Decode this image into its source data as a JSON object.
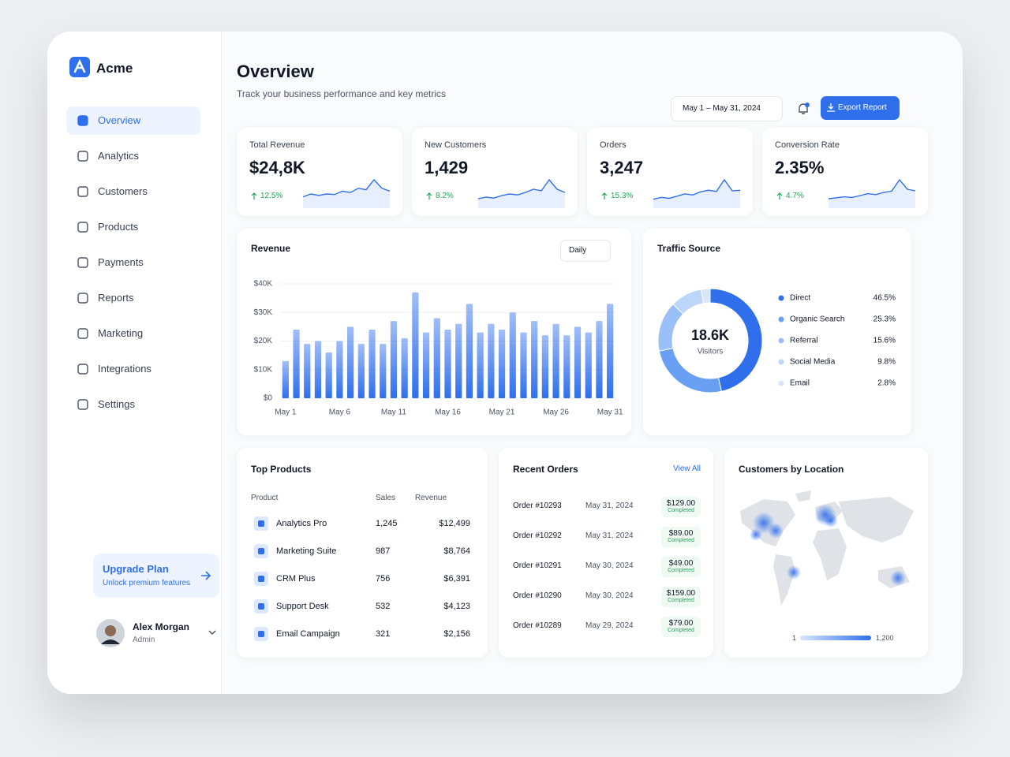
{
  "brand": "Acme",
  "nav": [
    "Overview",
    "Analytics",
    "Customers",
    "Products",
    "Payments",
    "Reports",
    "Marketing",
    "Integrations",
    "Settings"
  ],
  "upgrade": {
    "title": "Upgrade Plan",
    "subtitle": "Unlock premium features"
  },
  "user": {
    "name": "Alex Morgan",
    "role": "Admin"
  },
  "header": {
    "title": "Overview",
    "subtitle": "Track your business performance and key metrics",
    "date_range": "May 1 – May 31, 2024",
    "export": "Export Report"
  },
  "kpis": [
    {
      "label": "Total Revenue",
      "value": "$24,8K",
      "change": "12.5%",
      "trend": [
        4,
        5,
        4.5,
        5,
        4.8,
        6,
        5.5,
        7,
        6.5,
        10,
        7,
        6
      ]
    },
    {
      "label": "New Customers",
      "value": "1,429",
      "change": "8.2%",
      "trend": [
        3,
        3.5,
        3.2,
        4,
        4.5,
        4.2,
        5,
        6,
        5.5,
        9,
        6,
        5
      ]
    },
    {
      "label": "Orders",
      "value": "3,247",
      "change": "15.3%",
      "trend": [
        3,
        3.6,
        3.3,
        4,
        4.8,
        4.4,
        5.5,
        6,
        5.6,
        9.5,
        5.8,
        6
      ]
    },
    {
      "label": "Conversion Rate",
      "value": "2.35%",
      "change": "4.7%",
      "trend": [
        3,
        3.3,
        3.6,
        3.4,
        4,
        4.6,
        4.3,
        5,
        5.4,
        9,
        6,
        5.5
      ]
    }
  ],
  "chart_data": [
    {
      "type": "bar",
      "title": "Revenue",
      "period": "Daily",
      "categories": [
        "May 1",
        null,
        null,
        null,
        null,
        "May 6",
        null,
        null,
        null,
        null,
        "May 11",
        null,
        null,
        null,
        null,
        "May 16",
        null,
        null,
        null,
        null,
        "May 21",
        null,
        null,
        null,
        null,
        "May 26",
        null,
        null,
        null,
        null,
        "May 31"
      ],
      "values": [
        13000,
        24000,
        19000,
        20000,
        16000,
        20000,
        25000,
        19000,
        24000,
        19000,
        27000,
        21000,
        37000,
        23000,
        28000,
        24000,
        26000,
        33000,
        23000,
        26000,
        24000,
        30000,
        23000,
        27000,
        22000,
        26000,
        22000,
        25000,
        23000,
        27000,
        33000
      ],
      "color": "#2f6fec",
      "ylim": [
        0,
        40000
      ],
      "yticks": [
        {
          "value": 0,
          "label": "$0"
        },
        {
          "value": 10000,
          "label": "$10K"
        },
        {
          "value": 20000,
          "label": "$20K"
        },
        {
          "value": 30000,
          "label": "$30K"
        },
        {
          "value": 40000,
          "label": "$40K"
        }
      ],
      "grid": true
    },
    {
      "type": "pie",
      "title": "Traffic Source",
      "center_value": "18.6K",
      "center_label": "Visitors",
      "categories": [
        "Direct",
        "Organic Search",
        "Referral",
        "Social Media",
        "Email"
      ],
      "values": [
        46.5,
        25.3,
        15.6,
        9.8,
        2.8
      ],
      "value_labels": [
        "46.5%",
        "25.3%",
        "15.6%",
        "9.8%",
        "2.8%"
      ],
      "colors": [
        "#2f6fec",
        "#6aa0f3",
        "#9bc0f7",
        "#bcd5fa",
        "#d8e6fc"
      ]
    }
  ],
  "top_products": {
    "title": "Top Products",
    "columns": [
      "Product",
      "Sales",
      "Revenue"
    ],
    "rows": [
      [
        "Analytics Pro",
        "1,245",
        "$12,499"
      ],
      [
        "Marketing Suite",
        "987",
        "$8,764"
      ],
      [
        "CRM Plus",
        "756",
        "$6,391"
      ],
      [
        "Support Desk",
        "532",
        "$4,123"
      ],
      [
        "Email Campaign",
        "321",
        "$2,156"
      ]
    ]
  },
  "recent_orders": {
    "title": "Recent Orders",
    "link": "View All",
    "rows": [
      [
        "Order #10293",
        "May 31, 2024",
        "$129.00",
        "Completed"
      ],
      [
        "Order #10292",
        "May 31, 2024",
        "$89.00",
        "Completed"
      ],
      [
        "Order #10291",
        "May 30, 2024",
        "$49.00",
        "Completed"
      ],
      [
        "Order #10290",
        "May 30, 2024",
        "$159.00",
        "Completed"
      ],
      [
        "Order #10289",
        "May 29, 2024",
        "$79.00",
        "Completed"
      ]
    ]
  },
  "location": {
    "title": "Customers by Location",
    "scale_min": "1",
    "scale_max": "1,200"
  }
}
